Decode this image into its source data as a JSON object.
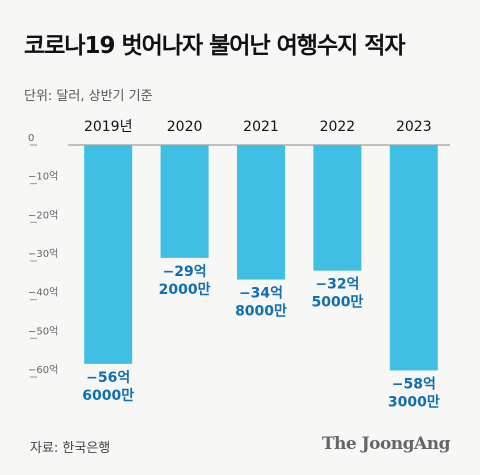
{
  "title": "코로나19 벗어나자 불어난 여행수지 적자",
  "subtitle": "단위: 달러, 상반기 기준",
  "source": "자료: 한국은행",
  "logo": "The JoongAng",
  "chart_data": {
    "type": "bar",
    "categories": [
      "2019년",
      "2020",
      "2021",
      "2022",
      "2023"
    ],
    "series": [
      {
        "values": [
          -56.6,
          -29.2,
          -34.8,
          -32.5,
          -58.3
        ],
        "data_labels": [
          [
            "−56억",
            "6000만"
          ],
          [
            "−29억",
            "2000만"
          ],
          [
            "−34억",
            "8000만"
          ],
          [
            "−32억",
            "5000만"
          ],
          [
            "−58억",
            "3000만"
          ]
        ],
        "color": "#3fbfe4"
      }
    ],
    "yticks": [
      0,
      -10,
      -20,
      -30,
      -40,
      -50,
      -60
    ],
    "ytick_labels": [
      "0",
      "−10억",
      "−20억",
      "−30억",
      "−40억",
      "−50억",
      "−60억"
    ],
    "ylim": [
      -60,
      0
    ],
    "xaxis_position": "top",
    "grid": false,
    "label_color": "#0f6fb0"
  }
}
